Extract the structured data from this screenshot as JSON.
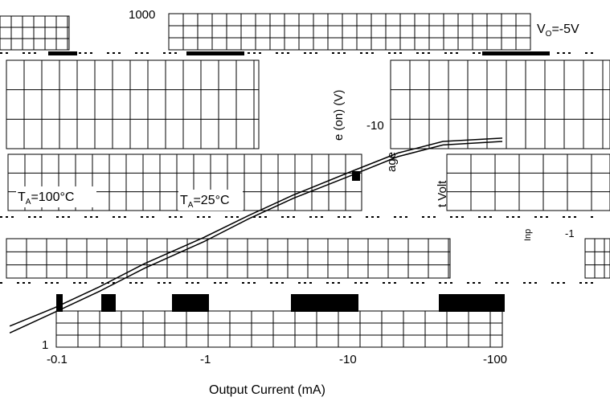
{
  "chart_data": {
    "type": "line",
    "title": "",
    "xlabel": "Output Current (mA)",
    "ylabel_fragments": [
      "e (on) (V)",
      "age",
      "t Volt",
      "Inp"
    ],
    "x_scale": "log",
    "y_scale": "log",
    "x_ticks": [
      "-0.1",
      "-1",
      "-10",
      "-100"
    ],
    "y_ticks_left": [
      "1000",
      "1"
    ],
    "y_ticks_right": [
      "-10",
      "-1"
    ],
    "annotations": {
      "condition": "V",
      "condition_sub": "O",
      "condition_val": "=-5V",
      "label_hot": "T",
      "label_hot_sub": "A",
      "label_hot_val": "=100°C",
      "label_room": "T",
      "label_room_sub": "A",
      "label_room_val": "=25°C"
    },
    "series": [
      {
        "values_x": [
          -0.05,
          -0.1,
          -0.2,
          -0.4,
          -1,
          -2,
          -4,
          -10,
          -20,
          -40,
          -100
        ],
        "values_y": [
          1.5,
          2.2,
          3.4,
          5.5,
          9.5,
          15,
          23,
          38,
          55,
          70,
          75
        ]
      },
      {
        "values_x": [
          -0.05,
          -0.1,
          -0.2,
          -0.4,
          -1,
          -2,
          -4,
          -10,
          -20,
          -40,
          -100
        ],
        "values_y": [
          1.3,
          2.0,
          3.1,
          5.0,
          8.7,
          14,
          21.5,
          35,
          51,
          65,
          70
        ]
      }
    ]
  }
}
